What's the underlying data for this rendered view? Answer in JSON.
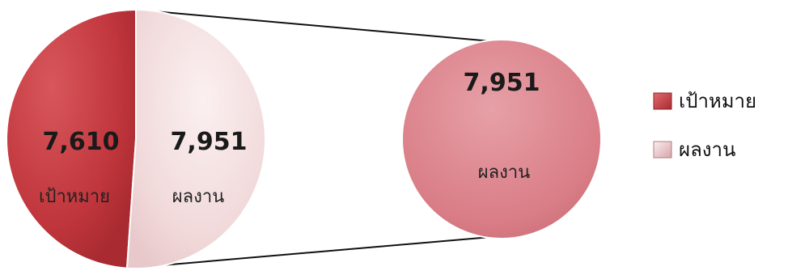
{
  "chart_data": {
    "type": "pie",
    "title": "",
    "categories": [
      "เป้าหมาย",
      "ผลงาน"
    ],
    "values": [
      7610,
      7951
    ],
    "value_labels": [
      "7,610",
      "7,951"
    ],
    "slice_labels": [
      "เป้าหมาย",
      "ผลงาน"
    ],
    "detail": {
      "category": "ผลงาน",
      "value": 7951,
      "value_label": "7,951",
      "label": "ผลงาน"
    },
    "legend": {
      "position": "right",
      "items": [
        "เป้าหมาย",
        "ผลงาน"
      ]
    },
    "colors": {
      "เป้าหมาย": "#c0363c",
      "ผลงาน": "#f1d9da",
      "detail": "#d97d86",
      "connector": "#111111"
    }
  }
}
